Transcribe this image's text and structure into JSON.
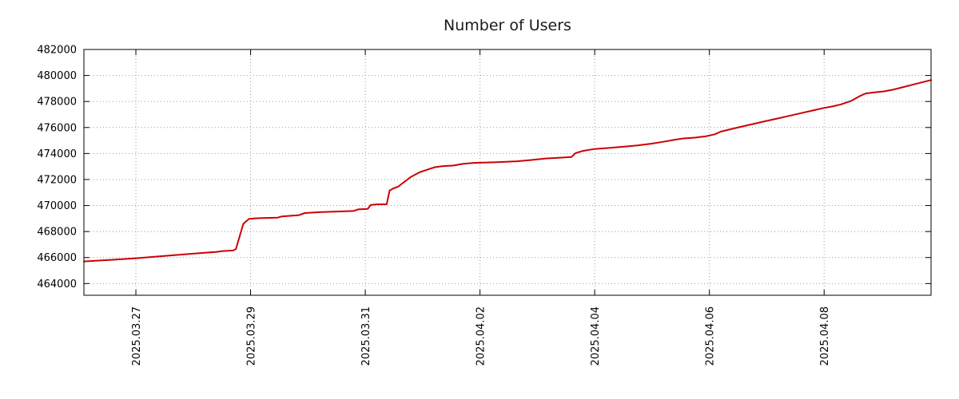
{
  "chart_data": {
    "type": "line",
    "title": "Number of Users",
    "xlabel": "",
    "ylabel": "",
    "grid": {
      "style": "dotted",
      "color": "#9c9c9c"
    },
    "x_axis": {
      "range": [
        0,
        14.77
      ],
      "tick_positions": [
        0.906,
        2.906,
        4.906,
        6.906,
        8.906,
        10.906,
        12.906
      ],
      "tick_labels": [
        "2025.03.27",
        "2025.03.29",
        "2025.03.31",
        "2025.04.02",
        "2025.04.04",
        "2025.04.06",
        "2025.04.08"
      ],
      "label_rotation": -90
    },
    "y_axis": {
      "range": [
        463100,
        482000
      ],
      "ticks": [
        464000,
        466000,
        468000,
        470000,
        472000,
        474000,
        476000,
        478000,
        480000,
        482000
      ]
    },
    "series": [
      {
        "name": "Number of Users",
        "color": "#cc0000",
        "width": 2,
        "points": [
          [
            0.0,
            465700
          ],
          [
            0.45,
            465820
          ],
          [
            0.91,
            465950
          ],
          [
            1.4,
            466120
          ],
          [
            1.9,
            466300
          ],
          [
            2.3,
            466430
          ],
          [
            2.42,
            466500
          ],
          [
            2.6,
            466540
          ],
          [
            2.65,
            466650
          ],
          [
            2.78,
            468600
          ],
          [
            2.88,
            468980
          ],
          [
            3.05,
            469030
          ],
          [
            3.38,
            469070
          ],
          [
            3.45,
            469160
          ],
          [
            3.75,
            469260
          ],
          [
            3.85,
            469420
          ],
          [
            4.1,
            469490
          ],
          [
            4.4,
            469540
          ],
          [
            4.7,
            469580
          ],
          [
            4.78,
            469700
          ],
          [
            4.95,
            469740
          ],
          [
            5.0,
            470040
          ],
          [
            5.1,
            470090
          ],
          [
            5.28,
            470100
          ],
          [
            5.33,
            471150
          ],
          [
            5.4,
            471320
          ],
          [
            5.48,
            471450
          ],
          [
            5.55,
            471700
          ],
          [
            5.7,
            472200
          ],
          [
            5.85,
            472550
          ],
          [
            6.0,
            472780
          ],
          [
            6.12,
            472950
          ],
          [
            6.25,
            473030
          ],
          [
            6.45,
            473080
          ],
          [
            6.6,
            473200
          ],
          [
            6.8,
            473280
          ],
          [
            7.2,
            473330
          ],
          [
            7.55,
            473400
          ],
          [
            7.8,
            473500
          ],
          [
            8.05,
            473620
          ],
          [
            8.3,
            473680
          ],
          [
            8.5,
            473730
          ],
          [
            8.57,
            474020
          ],
          [
            8.7,
            474200
          ],
          [
            8.9,
            474350
          ],
          [
            9.15,
            474430
          ],
          [
            9.4,
            474520
          ],
          [
            9.65,
            474620
          ],
          [
            9.9,
            474760
          ],
          [
            10.1,
            474900
          ],
          [
            10.3,
            475060
          ],
          [
            10.45,
            475160
          ],
          [
            10.65,
            475220
          ],
          [
            10.85,
            475330
          ],
          [
            11.0,
            475480
          ],
          [
            11.1,
            475680
          ],
          [
            11.35,
            475950
          ],
          [
            11.6,
            476200
          ],
          [
            11.85,
            476450
          ],
          [
            12.1,
            476700
          ],
          [
            12.35,
            476950
          ],
          [
            12.6,
            477200
          ],
          [
            12.9,
            477500
          ],
          [
            13.05,
            477620
          ],
          [
            13.2,
            477780
          ],
          [
            13.38,
            478050
          ],
          [
            13.52,
            478400
          ],
          [
            13.63,
            478620
          ],
          [
            13.78,
            478700
          ],
          [
            13.95,
            478780
          ],
          [
            14.1,
            478900
          ],
          [
            14.3,
            479120
          ],
          [
            14.5,
            479350
          ],
          [
            14.77,
            479650
          ]
        ]
      }
    ]
  }
}
